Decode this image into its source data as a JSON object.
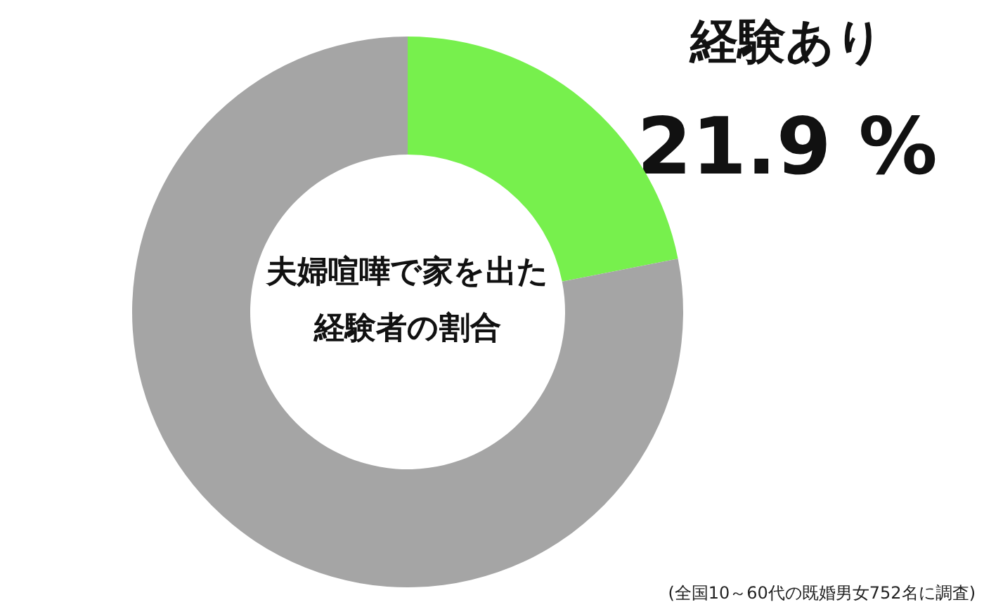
{
  "chart_data": {
    "type": "donut",
    "title": "夫婦喧嘩で家を出た経験者の割合",
    "categories": [
      "経験あり",
      null
    ],
    "values": [
      21.9,
      78.1
    ],
    "colors": [
      "#77f04d",
      "#a5a5a5"
    ],
    "value_labels": [
      "21.9 %",
      null
    ],
    "legend": false,
    "annotations": [
      "(全国10～60代の既婚男女752名に調査)"
    ]
  }
}
